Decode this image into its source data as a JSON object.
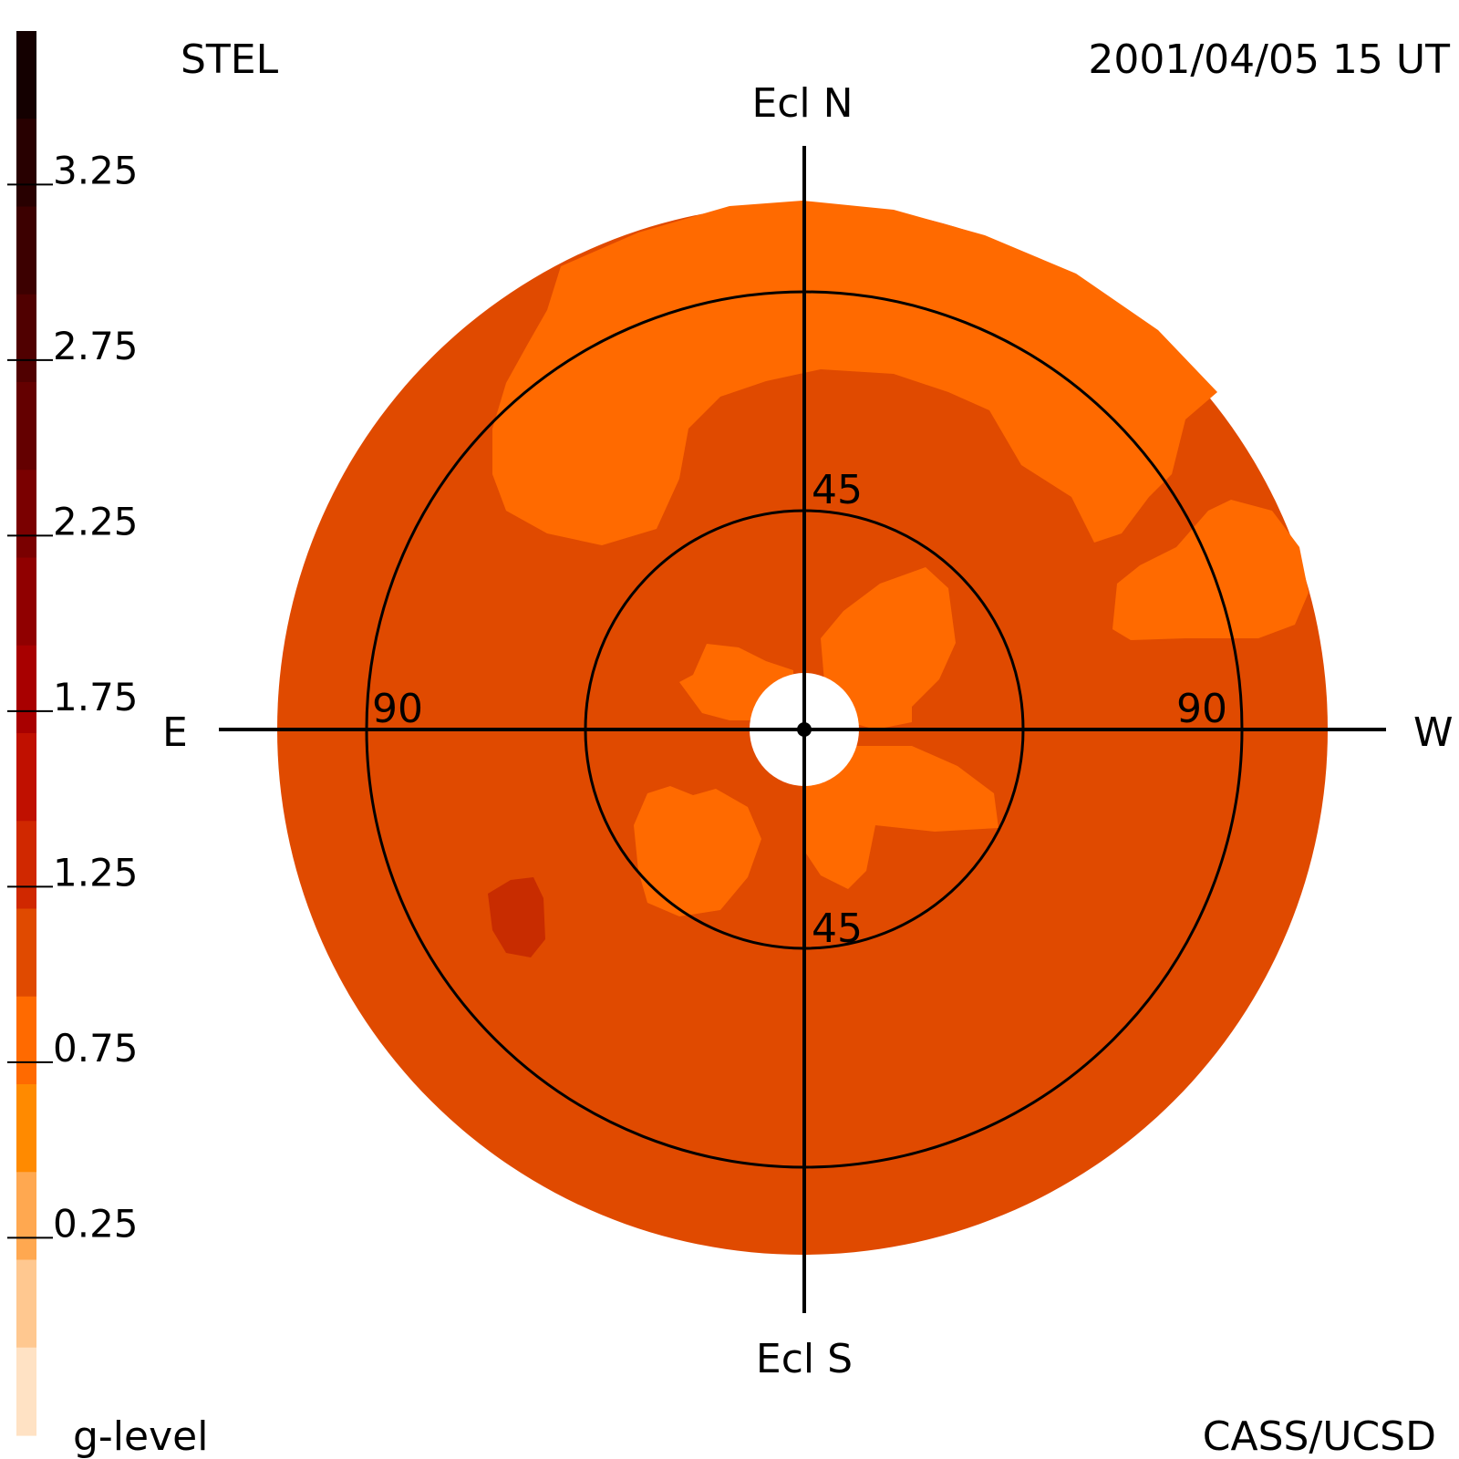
{
  "header": {
    "source": "STEL",
    "datetime": "2001/04/05 15 UT"
  },
  "footer": {
    "quantity": "g-level",
    "credit": "CASS/UCSD"
  },
  "directions": {
    "north": "Ecl N",
    "south": "Ecl S",
    "east": "E",
    "west": "W"
  },
  "rings": {
    "inner_top": "45",
    "inner_bottom": "45",
    "outer_left": "90",
    "outer_right": "90"
  },
  "colorbar": {
    "tick_labels": [
      "3.25",
      "2.75",
      "2.25",
      "1.75",
      "1.25",
      "0.75",
      "0.25"
    ],
    "colors_top_to_bottom": [
      "#140000",
      "#280000",
      "#3c0000",
      "#500000",
      "#640000",
      "#7a0000",
      "#900000",
      "#a80000",
      "#c01000",
      "#d02800",
      "#e04a00",
      "#ff6a00",
      "#ff8a00",
      "#ffa850",
      "#ffc890",
      "#ffe2c4"
    ]
  },
  "map_colors": {
    "background_level": "#e04a00",
    "enhanced_level": "#c82c00",
    "low_level": "#ff6a00",
    "sun_mask": "#ffffff",
    "grid": "#000000"
  }
}
